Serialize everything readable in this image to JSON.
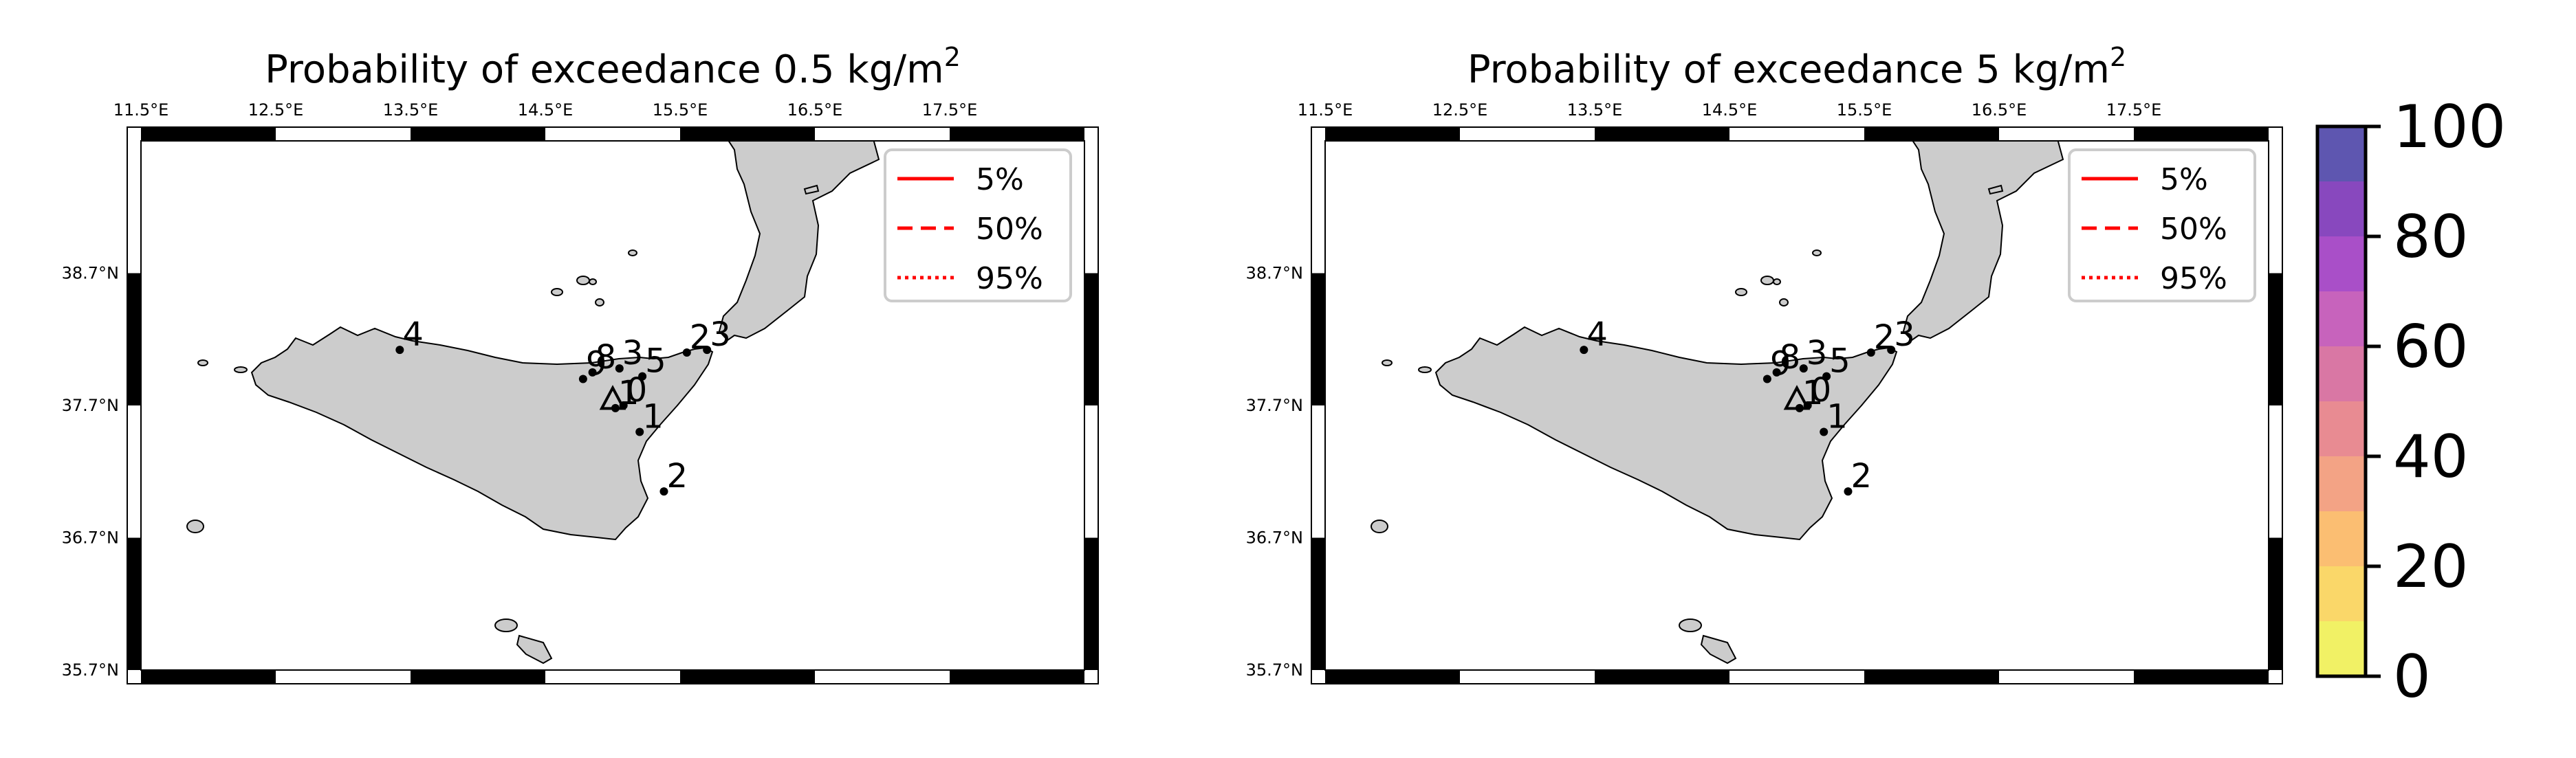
{
  "panels": [
    {
      "title": "Probability of exceedance 0.5 kg/m",
      "title_sup": "2"
    },
    {
      "title": "Probability of exceedance 5 kg/m",
      "title_sup": "2"
    }
  ],
  "axes": {
    "lon_ticks": [
      "11.5°E",
      "12.5°E",
      "13.5°E",
      "14.5°E",
      "15.5°E",
      "16.5°E",
      "17.5°E"
    ],
    "lat_ticks": [
      "38.7°N",
      "37.7°N",
      "36.7°N",
      "35.7°N"
    ],
    "lon_range": [
      11.5,
      18.5
    ],
    "lat_range": [
      35.7,
      39.7
    ]
  },
  "legend": {
    "entries": [
      {
        "label": "5%",
        "style": "solid"
      },
      {
        "label": "50%",
        "style": "dashed"
      },
      {
        "label": "95%",
        "style": "dotted"
      }
    ],
    "color": "#ff0000",
    "placement": "top-right"
  },
  "colorbar": {
    "ticks": [
      "0",
      "20",
      "40",
      "60",
      "80",
      "100"
    ],
    "levels": [
      0,
      10,
      20,
      30,
      40,
      50,
      60,
      70,
      80,
      90,
      100
    ],
    "colors": [
      "#f1f165",
      "#fad769",
      "#fbbe72",
      "#f3a385",
      "#e88b92",
      "#d977a4",
      "#c763bc",
      "#a94fc8",
      "#8848be",
      "#5e56b0"
    ]
  },
  "map_colors": {
    "land": "#cccccc",
    "coast": "#000000",
    "marker": "#000000"
  },
  "stations": [
    {
      "label": "1",
      "lon": 15.2,
      "lat": 37.5
    },
    {
      "label": "2",
      "lon": 15.38,
      "lat": 37.05
    },
    {
      "label": "4",
      "lon": 13.42,
      "lat": 38.12
    },
    {
      "label": "8",
      "lon": 14.85,
      "lat": 37.95
    },
    {
      "label": "9",
      "lon": 14.78,
      "lat": 37.9
    },
    {
      "label": "3",
      "lon": 15.05,
      "lat": 37.98
    },
    {
      "label": "5",
      "lon": 15.22,
      "lat": 37.92
    },
    {
      "label": "2",
      "lon": 15.55,
      "lat": 38.1
    },
    {
      "label": "3",
      "lon": 15.7,
      "lat": 38.12
    },
    {
      "label": "1",
      "lon": 15.02,
      "lat": 37.68
    },
    {
      "label": "0",
      "lon": 15.08,
      "lat": 37.7
    }
  ],
  "vent": {
    "lon": 15.0,
    "lat": 37.75
  }
}
